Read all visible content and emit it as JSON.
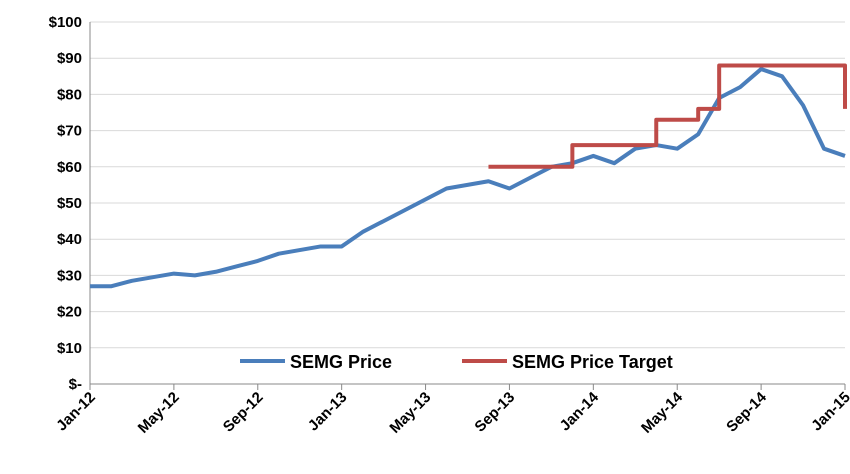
{
  "chart_data": {
    "type": "line",
    "xlim": [
      "2012-01",
      "2015-01"
    ],
    "xticks": [
      {
        "value": "2012-01",
        "label": "Jan-12"
      },
      {
        "value": "2012-05",
        "label": "May-12"
      },
      {
        "value": "2012-09",
        "label": "Sep-12"
      },
      {
        "value": "2013-01",
        "label": "Jan-13"
      },
      {
        "value": "2013-05",
        "label": "May-13"
      },
      {
        "value": "2013-09",
        "label": "Sep-13"
      },
      {
        "value": "2014-01",
        "label": "Jan-14"
      },
      {
        "value": "2014-05",
        "label": "May-14"
      },
      {
        "value": "2014-09",
        "label": "Sep-14"
      },
      {
        "value": "2015-01",
        "label": "Jan-15"
      }
    ],
    "ylim": [
      0,
      100
    ],
    "yticks": [
      {
        "value": 0,
        "label": "$-"
      },
      {
        "value": 10,
        "label": "$10"
      },
      {
        "value": 20,
        "label": "$20"
      },
      {
        "value": 30,
        "label": "$30"
      },
      {
        "value": 40,
        "label": "$40"
      },
      {
        "value": 50,
        "label": "$50"
      },
      {
        "value": 60,
        "label": "$60"
      },
      {
        "value": 70,
        "label": "$70"
      },
      {
        "value": 80,
        "label": "$80"
      },
      {
        "value": 90,
        "label": "$90"
      },
      {
        "value": 100,
        "label": "$100"
      }
    ],
    "grid": true,
    "legend": "bottom",
    "series": [
      {
        "name": "SEMG Price",
        "color": "#4a7ebb",
        "step": false,
        "x": [
          "2012-01",
          "2012-02",
          "2012-03",
          "2012-04",
          "2012-05",
          "2012-06",
          "2012-07",
          "2012-08",
          "2012-09",
          "2012-10",
          "2012-11",
          "2012-12",
          "2013-01",
          "2013-02",
          "2013-03",
          "2013-04",
          "2013-05",
          "2013-06",
          "2013-07",
          "2013-08",
          "2013-09",
          "2013-10",
          "2013-11",
          "2013-12",
          "2014-01",
          "2014-02",
          "2014-03",
          "2014-04",
          "2014-05",
          "2014-06",
          "2014-07",
          "2014-08",
          "2014-09",
          "2014-10",
          "2014-11",
          "2014-12",
          "2015-01"
        ],
        "values": [
          27,
          27,
          28.5,
          29.5,
          30.5,
          30,
          31,
          32.5,
          34,
          36,
          37,
          38,
          38,
          42,
          45,
          48,
          51,
          54,
          55,
          56,
          54,
          57,
          60,
          61,
          63,
          61,
          65,
          66,
          65,
          69,
          79,
          82,
          87,
          85,
          77,
          65,
          63
        ]
      },
      {
        "name": "SEMG Price Target",
        "color": "#be4b48",
        "step": true,
        "x": [
          "2013-08",
          "2013-12",
          "2014-04",
          "2014-06",
          "2014-07",
          "2015-01"
        ],
        "values": [
          60,
          66,
          73,
          76,
          88,
          76
        ]
      }
    ]
  }
}
